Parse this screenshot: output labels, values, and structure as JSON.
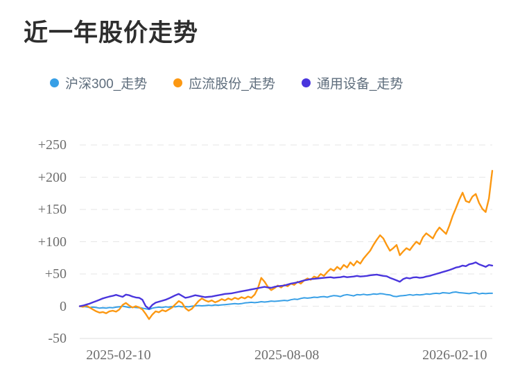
{
  "chart_data": {
    "type": "line",
    "title": "近一年股价走势",
    "xlabel": "",
    "ylabel": "",
    "ylim": [
      -50,
      250
    ],
    "grid": "horizontal-dashed",
    "legend_position": "top-left",
    "y_ticks": [
      {
        "label": "+250",
        "value": 250
      },
      {
        "label": "+200",
        "value": 200
      },
      {
        "label": "+150",
        "value": 150
      },
      {
        "label": "+100",
        "value": 100
      },
      {
        "label": "+50",
        "value": 50
      },
      {
        "label": "0",
        "value": 0
      },
      {
        "label": "-50",
        "value": -50
      }
    ],
    "x_tick_labels": [
      "2025-02-10",
      "2025-08-08",
      "2026-02-10"
    ],
    "x_tick_positions": [
      0.094,
      0.502,
      0.909
    ],
    "series": [
      {
        "name": "沪深300_走势",
        "color": "#379fe6",
        "values": [
          0,
          -0.5,
          -1,
          -2,
          -1.5,
          -2,
          -3,
          -2.5,
          -3,
          -2,
          -2.5,
          -1.5,
          -1,
          0,
          -1,
          -2,
          -1.5,
          -2,
          -2.5,
          -3,
          -4,
          -5,
          -3,
          -2,
          -1.5,
          -2,
          -1,
          -1.5,
          -0.5,
          -1,
          0,
          -1,
          -0.5,
          -1,
          0,
          0.5,
          1,
          0.5,
          1,
          1.5,
          1,
          2,
          1.5,
          2,
          2.5,
          3,
          3.5,
          4,
          3.5,
          4,
          5,
          5.5,
          6,
          5.5,
          6,
          7,
          6.5,
          7,
          8,
          7.5,
          8,
          8.5,
          9,
          8.5,
          10,
          11,
          10.5,
          12,
          13,
          12.5,
          13,
          14,
          13.5,
          14.5,
          15,
          14,
          15.5,
          16.5,
          16,
          15,
          17,
          18,
          17,
          16,
          18,
          17.5,
          18.5,
          17.5,
          18,
          19,
          18.5,
          19.5,
          19,
          18,
          17.5,
          15.5,
          15,
          16,
          16.5,
          17,
          18,
          17,
          18,
          17.5,
          18,
          19,
          18.5,
          19.5,
          20,
          19.5,
          21,
          20.5,
          20,
          21.5,
          22,
          21,
          20.5,
          20,
          19.5,
          20.5,
          21,
          19,
          20,
          19.5,
          20,
          20
        ]
      },
      {
        "name": "应流股份_走势",
        "color": "#fc9812",
        "values": [
          0,
          -1,
          1,
          -2,
          -5,
          -8,
          -10,
          -9,
          -11,
          -8,
          -7,
          -8.5,
          -5,
          2,
          5,
          1,
          -2,
          0,
          -2,
          -5,
          -12,
          -20,
          -13,
          -8,
          -9.5,
          -6,
          -8,
          -5,
          -2,
          3,
          8,
          5,
          -3,
          -7,
          -4,
          2,
          8,
          12,
          9,
          7,
          9,
          6,
          8,
          11,
          9,
          12,
          10,
          13,
          11,
          14,
          12,
          15,
          13,
          18,
          28,
          44,
          38,
          30,
          25,
          28,
          32,
          29,
          33,
          31,
          35,
          33,
          38,
          35,
          40,
          43,
          41,
          46,
          44,
          50,
          47,
          53,
          58,
          55,
          61,
          57,
          64,
          60,
          68,
          63,
          70,
          66,
          74,
          80,
          86,
          95,
          103,
          110,
          105,
          95,
          86,
          90,
          95,
          79,
          85,
          90,
          87,
          94,
          100,
          96,
          107,
          113,
          109,
          105,
          115,
          122,
          117,
          112,
          125,
          140,
          152,
          165,
          176,
          163,
          161,
          170,
          174,
          160,
          151,
          146,
          167,
          210
        ]
      },
      {
        "name": "通用设备_走势",
        "color": "#4935dd",
        "values": [
          0,
          1,
          2.5,
          4,
          6,
          8,
          10,
          12,
          13.5,
          15,
          16,
          17.5,
          16,
          14.5,
          18,
          17,
          15,
          13.5,
          13,
          10,
          0,
          -4,
          2,
          5.5,
          7,
          8.5,
          10,
          12,
          14.5,
          17,
          19,
          16,
          13,
          14,
          15.5,
          17,
          16,
          15,
          14,
          14.5,
          15,
          16,
          17,
          18,
          19,
          19.5,
          20,
          21,
          22,
          23,
          24,
          25,
          26,
          27,
          28,
          29,
          30,
          29,
          28.5,
          30,
          31,
          31.5,
          32,
          33.5,
          35,
          36,
          37,
          38.5,
          40,
          41,
          42,
          42.5,
          43,
          43.5,
          44,
          44.5,
          45,
          44,
          44.5,
          45,
          46,
          45,
          45.5,
          46,
          47,
          46,
          46.5,
          47,
          48,
          48.5,
          49,
          48,
          47,
          46.5,
          44,
          42,
          40,
          38,
          42,
          44,
          43,
          44.5,
          45,
          44,
          44.5,
          46,
          47,
          48.5,
          50,
          51.5,
          53,
          54.5,
          56,
          58,
          60,
          61,
          63,
          62,
          65,
          66,
          68,
          65,
          63,
          61,
          64,
          63
        ]
      }
    ],
    "colors": {
      "grid_dashed": "#e6e6e6",
      "grid_solid_bottom": "#dcdcdc",
      "tick_text": "#6e6e6e",
      "legend_text": "#5e6d7c",
      "title_text": "#2e2e2e"
    }
  }
}
